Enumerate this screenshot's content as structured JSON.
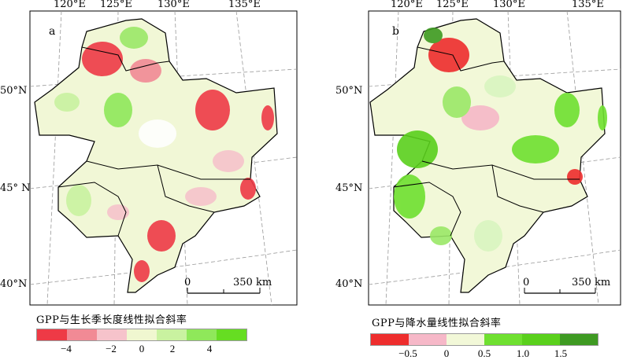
{
  "maps": [
    {
      "panel_letter": "a",
      "lon_labels": [
        "120°E",
        "125°E",
        "130°E",
        "135°E"
      ],
      "lat_labels": [
        "50°N",
        "45° N",
        "40°N"
      ],
      "scale_start": "0",
      "scale_end": "350 km",
      "legend_title": "GPP与生长季长度线性拟合斜率",
      "legend_ticks": [
        "−4",
        "−2",
        "0",
        "2",
        "4"
      ],
      "legend_colors": [
        "#ee3a46",
        "#f18a95",
        "#f6c3cb",
        "#f0f7d0",
        "#c9f2a0",
        "#8fe85a",
        "#66dd22"
      ]
    },
    {
      "panel_letter": "b",
      "lon_labels": [
        "120°E",
        "125°E",
        "130°E",
        "135°E"
      ],
      "lat_labels": [
        "50°N",
        "45°N",
        "40°N"
      ],
      "scale_start": "0",
      "scale_end": "350 km",
      "legend_title": "GPP与降水量线性拟合斜率",
      "legend_ticks": [
        "−0.5",
        "0",
        "0.5",
        "1.0",
        "1.5"
      ],
      "legend_colors": [
        "#ee2d2d",
        "#f6b8c8",
        "#f2f8d8",
        "#6fe030",
        "#5ad01c",
        "#3e9a22"
      ]
    }
  ]
}
